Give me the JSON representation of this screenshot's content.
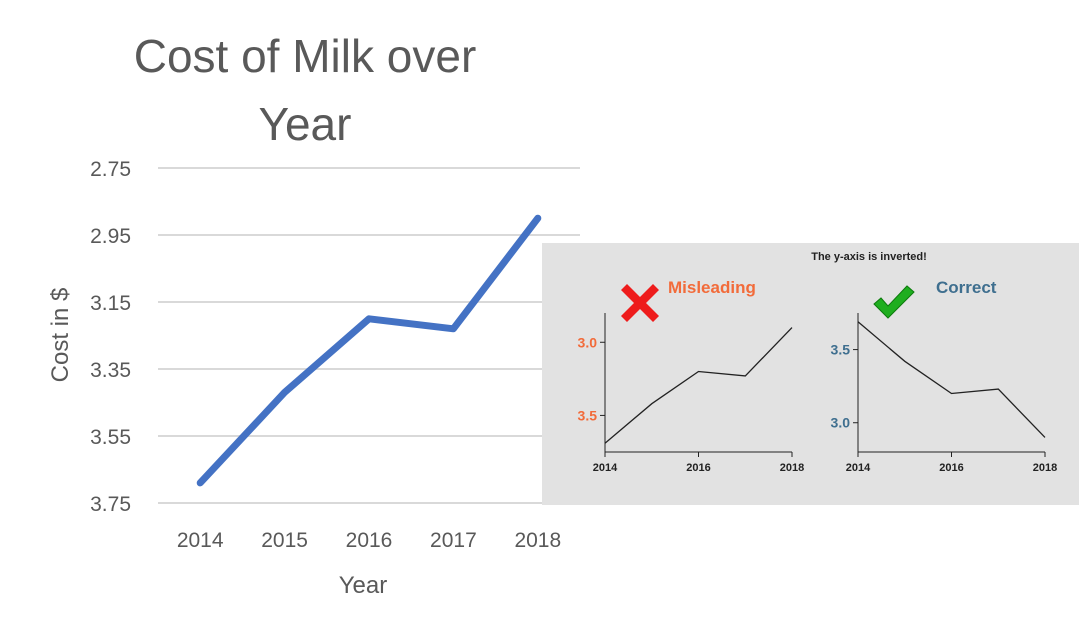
{
  "chart_data": [
    {
      "type": "line",
      "title": "Cost of Milk over Year",
      "title_lines": [
        "Cost of Milk over",
        "Year"
      ],
      "xlabel": "Year",
      "ylabel": "Cost in $",
      "categories": [
        "2014",
        "2015",
        "2016",
        "2017",
        "2018"
      ],
      "series": [
        {
          "values": [
            3.69,
            3.42,
            3.2,
            3.23,
            2.9
          ]
        }
      ],
      "ylim": [
        2.75,
        3.75
      ],
      "yticks": [
        "2.75",
        "2.95",
        "3.15",
        "3.35",
        "3.55",
        "3.75"
      ],
      "y_inverted": true,
      "grid": true,
      "color": "#4472c4"
    },
    {
      "type": "line",
      "panel_title": "Misleading",
      "mark": "cross-icon",
      "x": [
        2014,
        2015,
        2016,
        2017,
        2018
      ],
      "xticks": [
        "2014",
        "2016",
        "2018"
      ],
      "values": [
        3.69,
        3.42,
        3.2,
        3.23,
        2.9
      ],
      "yticks": [
        "3.0",
        "3.5"
      ],
      "ylim": [
        2.8,
        3.75
      ],
      "y_inverted": true,
      "accent": "#f26b3a"
    },
    {
      "type": "line",
      "panel_title": "Correct",
      "mark": "check-icon",
      "x": [
        2014,
        2015,
        2016,
        2017,
        2018
      ],
      "xticks": [
        "2014",
        "2016",
        "2018"
      ],
      "values": [
        3.69,
        3.42,
        3.2,
        3.23,
        2.9
      ],
      "yticks": [
        "3.0",
        "3.5"
      ],
      "ylim": [
        2.8,
        3.75
      ],
      "y_inverted": false,
      "accent": "#3f6f8f"
    }
  ],
  "inset": {
    "caption": "The y-axis is inverted!"
  },
  "colors": {
    "grid": "#d9d9d9",
    "text": "#595959",
    "inset_bg": "#e2e2e2",
    "cross": "#ee1c1c",
    "check": "#1fae1f"
  }
}
